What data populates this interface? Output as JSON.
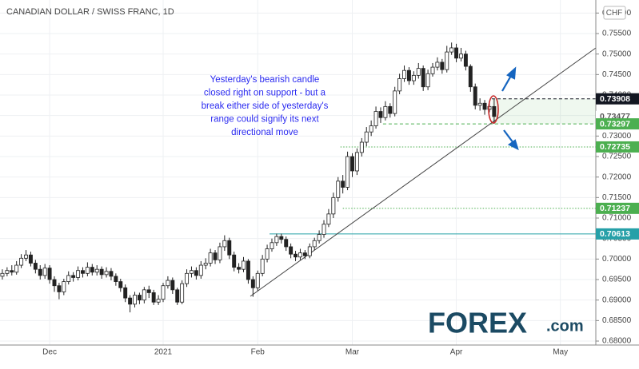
{
  "chart_data": {
    "type": "candlestick",
    "title": "CANADIAN DOLLAR / SWISS FRANC, 1D",
    "currency": "CHF",
    "annotation": [
      "Yesterday's bearish candle",
      "closed right on support - but a",
      "break either side of yesterday's",
      "range could signify its next",
      "directional move"
    ],
    "logo": {
      "brand": "FOREX",
      "suffix": ".com"
    },
    "categories": [
      null,
      null,
      null,
      null,
      null,
      null,
      null,
      null,
      null,
      null,
      "Dec",
      null,
      null,
      null,
      null,
      null,
      null,
      null,
      null,
      null,
      null,
      null,
      null,
      null,
      null,
      null,
      null,
      null,
      null,
      null,
      null,
      null,
      null,
      null,
      "2021",
      null,
      null,
      null,
      null,
      null,
      null,
      null,
      null,
      null,
      null,
      null,
      null,
      null,
      null,
      null,
      null,
      null,
      null,
      null,
      "Feb",
      null,
      null,
      null,
      null,
      null,
      null,
      null,
      null,
      null,
      null,
      null,
      null,
      null,
      null,
      null,
      null,
      null,
      null,
      null,
      "Mar",
      null,
      null,
      null,
      null,
      null,
      null,
      null,
      null,
      null,
      null,
      null,
      null,
      null,
      null,
      null,
      null,
      null,
      null,
      null,
      null,
      null,
      "Apr",
      null,
      null,
      null,
      null,
      null,
      null,
      null,
      null,
      null,
      null,
      null,
      null,
      null,
      null,
      null,
      null,
      null,
      null,
      null,
      null,
      null,
      "May",
      null,
      null,
      null,
      null,
      null,
      null,
      null
    ],
    "open": [
      0.6958,
      0.6965,
      0.6972,
      0.6968,
      0.6985,
      0.7002,
      0.701,
      0.699,
      0.6975,
      0.696,
      0.6978,
      0.695,
      0.6935,
      0.692,
      0.6945,
      0.696,
      0.6955,
      0.6972,
      0.6965,
      0.698,
      0.6968,
      0.6975,
      0.6962,
      0.697,
      0.6958,
      0.6945,
      0.693,
      0.6905,
      0.689,
      0.6912,
      0.69,
      0.6925,
      0.6918,
      0.6895,
      0.6902,
      0.6935,
      0.6948,
      0.6925,
      0.6895,
      0.694,
      0.6965,
      0.6972,
      0.696,
      0.6985,
      0.699,
      0.7015,
      0.6998,
      0.703,
      0.7045,
      0.701,
      0.698,
      0.6975,
      0.6995,
      0.695,
      0.693,
      0.6965,
      0.7,
      0.7025,
      0.704,
      0.7055,
      0.7048,
      0.703,
      0.7012,
      0.7005,
      0.7015,
      0.7008,
      0.703,
      0.7045,
      0.706,
      0.7085,
      0.711,
      0.715,
      0.719,
      0.7175,
      0.725,
      0.7215,
      0.726,
      0.7285,
      0.731,
      0.7325,
      0.736,
      0.7345,
      0.7372,
      0.7355,
      0.741,
      0.744,
      0.746,
      0.7435,
      0.7448,
      0.7465,
      0.742,
      0.7452,
      0.7468,
      0.748,
      0.7462,
      0.7505,
      0.7515,
      0.749,
      0.75,
      0.747,
      0.742,
      0.7375,
      0.738,
      0.7365,
      0.7372,
      null,
      null,
      null,
      null,
      null,
      null,
      null,
      null,
      null,
      null,
      null,
      null,
      null,
      null,
      null,
      null,
      null,
      null,
      null,
      null,
      null
    ],
    "high": [
      0.6975,
      0.698,
      0.6985,
      0.6995,
      0.7012,
      0.7022,
      0.7018,
      0.6998,
      0.6985,
      0.6988,
      0.6985,
      0.6958,
      0.6942,
      0.6952,
      0.697,
      0.6968,
      0.6982,
      0.698,
      0.6992,
      0.6988,
      0.6985,
      0.6982,
      0.698,
      0.6978,
      0.6965,
      0.6952,
      0.6938,
      0.6912,
      0.692,
      0.6918,
      0.6932,
      0.6935,
      0.6925,
      0.6912,
      0.6942,
      0.6958,
      0.6955,
      0.693,
      0.6948,
      0.6975,
      0.6982,
      0.698,
      0.6995,
      0.7002,
      0.7025,
      0.7022,
      0.704,
      0.7058,
      0.7052,
      0.7018,
      0.699,
      0.7005,
      0.7,
      0.6958,
      0.6972,
      0.701,
      0.7035,
      0.705,
      0.7062,
      0.7062,
      0.7055,
      0.7038,
      0.702,
      0.7025,
      0.7022,
      0.7038,
      0.7052,
      0.707,
      0.7095,
      0.7122,
      0.7162,
      0.72,
      0.7205,
      0.7262,
      0.7258,
      0.727,
      0.7295,
      0.7322,
      0.7338,
      0.7372,
      0.737,
      0.7385,
      0.738,
      0.742,
      0.7452,
      0.7472,
      0.7468,
      0.7458,
      0.7478,
      0.7472,
      0.7462,
      0.7478,
      0.7492,
      0.7488,
      0.752,
      0.7528,
      0.7525,
      0.7515,
      0.7508,
      0.7475,
      0.7428,
      0.7392,
      0.7388,
      0.7385,
      0.73908,
      null,
      null,
      null,
      null,
      null,
      null,
      null,
      null,
      null,
      null,
      null,
      null,
      null,
      null,
      null,
      null,
      null,
      null,
      null,
      null,
      null
    ],
    "low": [
      0.695,
      0.6958,
      0.696,
      0.6962,
      0.6978,
      0.6995,
      0.6982,
      0.6965,
      0.695,
      0.6952,
      0.694,
      0.692,
      0.6902,
      0.6912,
      0.6938,
      0.6945,
      0.6948,
      0.6955,
      0.6958,
      0.696,
      0.696,
      0.6952,
      0.6955,
      0.6948,
      0.6935,
      0.692,
      0.6895,
      0.687,
      0.6882,
      0.689,
      0.6892,
      0.6905,
      0.6888,
      0.6888,
      0.6895,
      0.6928,
      0.6915,
      0.6888,
      0.689,
      0.6932,
      0.6955,
      0.695,
      0.6952,
      0.6975,
      0.6982,
      0.6988,
      0.699,
      0.702,
      0.7,
      0.697,
      0.6965,
      0.6968,
      0.694,
      0.6908,
      0.6922,
      0.6958,
      0.6992,
      0.7018,
      0.7032,
      0.7038,
      0.702,
      0.7002,
      0.6995,
      0.6998,
      0.7,
      0.7002,
      0.7022,
      0.7038,
      0.7052,
      0.7078,
      0.71,
      0.714,
      0.716,
      0.7168,
      0.72,
      0.7205,
      0.725,
      0.7275,
      0.73,
      0.7318,
      0.7332,
      0.7338,
      0.7345,
      0.7348,
      0.7402,
      0.7432,
      0.7425,
      0.7425,
      0.744,
      0.741,
      0.7412,
      0.7445,
      0.746,
      0.7452,
      0.7455,
      0.7498,
      0.748,
      0.7482,
      0.746,
      0.7408,
      0.7365,
      0.7362,
      0.7352,
      0.7358,
      0.73297,
      null,
      null,
      null,
      null,
      null,
      null,
      null,
      null,
      null,
      null,
      null,
      null,
      null,
      null,
      null,
      null,
      null,
      null,
      null,
      null,
      null
    ],
    "close": [
      0.6965,
      0.6972,
      0.6968,
      0.6985,
      0.7002,
      0.701,
      0.699,
      0.6975,
      0.696,
      0.6978,
      0.695,
      0.6935,
      0.692,
      0.6945,
      0.696,
      0.6955,
      0.6972,
      0.6965,
      0.698,
      0.6968,
      0.6975,
      0.6962,
      0.697,
      0.6958,
      0.6945,
      0.693,
      0.6905,
      0.689,
      0.6912,
      0.69,
      0.6925,
      0.6918,
      0.6895,
      0.6902,
      0.6935,
      0.6948,
      0.6925,
      0.6895,
      0.694,
      0.6965,
      0.6972,
      0.696,
      0.6985,
      0.699,
      0.7015,
      0.6998,
      0.703,
      0.7045,
      0.701,
      0.698,
      0.6975,
      0.6995,
      0.695,
      0.693,
      0.6965,
      0.7,
      0.7025,
      0.704,
      0.7055,
      0.7048,
      0.703,
      0.7012,
      0.7005,
      0.7015,
      0.7008,
      0.703,
      0.7045,
      0.706,
      0.7085,
      0.711,
      0.715,
      0.719,
      0.7175,
      0.725,
      0.7215,
      0.726,
      0.7285,
      0.731,
      0.7325,
      0.736,
      0.7345,
      0.7372,
      0.7355,
      0.741,
      0.744,
      0.746,
      0.7435,
      0.7448,
      0.7465,
      0.742,
      0.7452,
      0.7468,
      0.748,
      0.7462,
      0.7505,
      0.7515,
      0.749,
      0.75,
      0.747,
      0.742,
      0.7375,
      0.738,
      0.7365,
      0.7372,
      0.73477,
      null,
      null,
      null,
      null,
      null,
      null,
      null,
      null,
      null,
      null,
      null,
      null,
      null,
      null,
      null,
      null,
      null,
      null,
      null,
      null,
      null
    ],
    "levels": [
      {
        "value": 0.73908,
        "color": "#131722",
        "style": "dashed"
      },
      {
        "value": 0.73297,
        "color": "#4caf50",
        "style": "dashed"
      },
      {
        "value": 0.72735,
        "color": "#4caf50",
        "style": "dotted"
      },
      {
        "value": 0.71237,
        "color": "#4caf50",
        "style": "dotted"
      },
      {
        "value": 0.70613,
        "color": "#26a0a8",
        "style": "solid"
      }
    ],
    "ylim": [
      0.67903,
      0.76318
    ],
    "yticks": [
      {
        "value": 0.68,
        "label": "0.68000"
      },
      {
        "value": 0.685,
        "label": "0.68500"
      },
      {
        "value": 0.69,
        "label": "0.69000"
      },
      {
        "value": 0.695,
        "label": "0.69500"
      },
      {
        "value": 0.7,
        "label": "0.70000"
      },
      {
        "value": 0.705,
        "label": "0.70500"
      },
      {
        "value": 0.71,
        "label": "0.71000"
      },
      {
        "value": 0.715,
        "label": "0.71500"
      },
      {
        "value": 0.72,
        "label": "0.72000"
      },
      {
        "value": 0.725,
        "label": "0.72500"
      },
      {
        "value": 0.73,
        "label": "0.73000"
      },
      {
        "value": 0.735,
        "label": "0.73500"
      },
      {
        "value": 0.74,
        "label": "0.74000"
      },
      {
        "value": 0.745,
        "label": "0.74500"
      },
      {
        "value": 0.75,
        "label": "0.75000"
      },
      {
        "value": 0.755,
        "label": "0.75500"
      },
      {
        "value": 0.76,
        "label": "0.76000"
      }
    ],
    "grid": true
  }
}
